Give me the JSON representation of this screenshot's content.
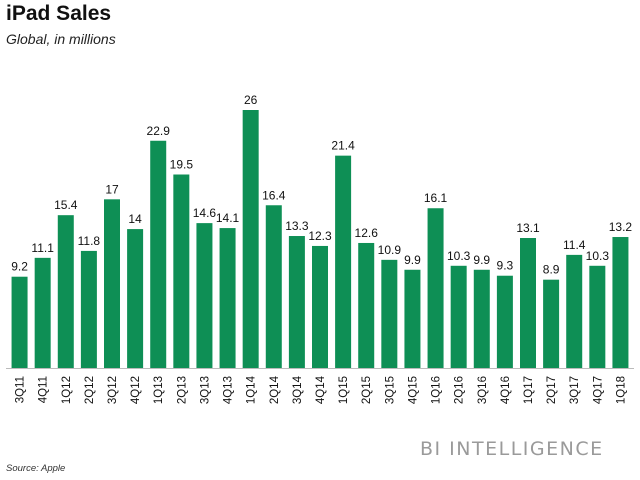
{
  "title": "iPad Sales",
  "subtitle": "Global, in millions",
  "brand": "BI INTELLIGENCE",
  "source": "Source: Apple",
  "colors": {
    "bar": "#0e8f55",
    "axis": "#bbbbbb"
  },
  "chart_data": {
    "type": "bar",
    "title": "iPad Sales",
    "subtitle": "Global, in millions",
    "categories": [
      "3Q11",
      "4Q11",
      "1Q12",
      "2Q12",
      "3Q12",
      "4Q12",
      "1Q13",
      "2Q13",
      "3Q13",
      "4Q13",
      "1Q14",
      "2Q14",
      "3Q14",
      "4Q14",
      "1Q15",
      "2Q15",
      "3Q15",
      "4Q15",
      "1Q16",
      "2Q16",
      "3Q16",
      "4Q16",
      "1Q17",
      "2Q17",
      "3Q17",
      "4Q17",
      "1Q18"
    ],
    "values": [
      9.2,
      11.1,
      15.4,
      11.8,
      17,
      14,
      22.9,
      19.5,
      14.6,
      14.1,
      26,
      16.4,
      13.3,
      12.3,
      21.4,
      12.6,
      10.9,
      9.9,
      16.1,
      10.3,
      9.9,
      9.3,
      13.1,
      8.9,
      11.4,
      10.3,
      13.2
    ],
    "value_labels": [
      "9.2",
      "11.1",
      "15.4",
      "11.8",
      "17",
      "14",
      "22.9",
      "19.5",
      "14.6",
      "14.1",
      "26",
      "16.4",
      "13.3",
      "12.3",
      "21.4",
      "12.6",
      "10.9",
      "9.9",
      "16.1",
      "10.3",
      "9.9",
      "9.3",
      "13.1",
      "8.9",
      "11.4",
      "10.3",
      "13.2"
    ],
    "ylim": [
      0,
      26
    ],
    "grid": false,
    "legend": "none",
    "xlabel": "",
    "ylabel": ""
  }
}
